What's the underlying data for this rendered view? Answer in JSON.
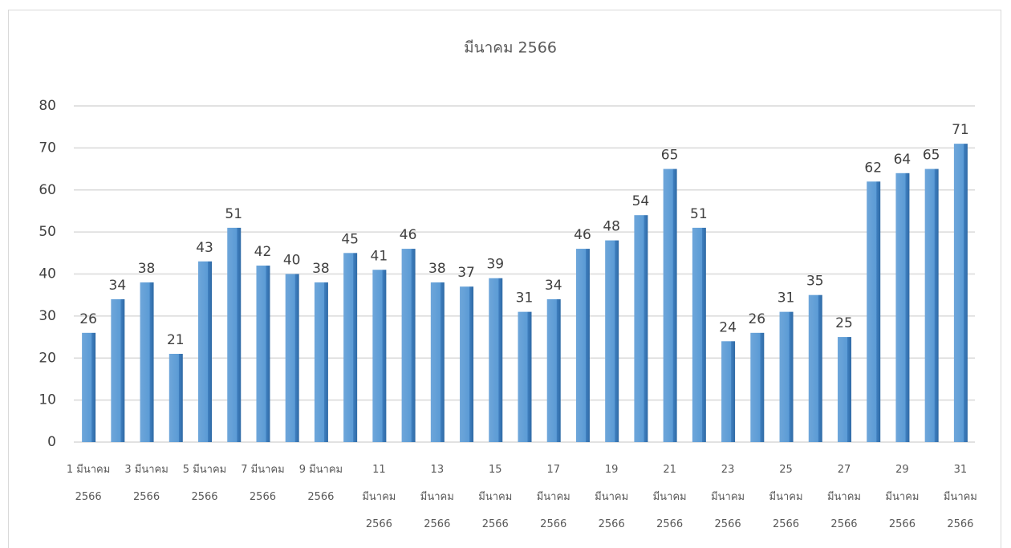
{
  "chart_data": {
    "type": "bar",
    "title": "มีนาคม 2566",
    "categories": [
      "1 มีนาคม 2566",
      null,
      "3 มีนาคม 2566",
      null,
      "5 มีนาคม 2566",
      null,
      "7 มีนาคม 2566",
      null,
      "9 มีนาคม 2566",
      null,
      "11 มีนาคม 2566",
      null,
      "13 มีนาคม 2566",
      null,
      "15 มีนาคม 2566",
      null,
      "17 มีนาคม 2566",
      null,
      "19 มีนาคม 2566",
      null,
      "21 มีนาคม 2566",
      null,
      "23 มีนาคม 2566",
      null,
      "25 มีนาคม 2566",
      null,
      "27 มีนาคม 2566",
      null,
      "29 มีนาคม 2566",
      null,
      "31 มีนาคม 2566"
    ],
    "values": [
      26,
      34,
      38,
      21,
      43,
      51,
      42,
      40,
      38,
      45,
      41,
      46,
      38,
      37,
      39,
      31,
      34,
      46,
      48,
      54,
      65,
      51,
      24,
      26,
      31,
      35,
      25,
      62,
      64,
      65,
      71
    ],
    "color": "#5b9bd5",
    "ylim": [
      0,
      80
    ],
    "yticks": [
      0,
      10,
      20,
      30,
      40,
      50,
      60,
      70,
      80
    ],
    "grid": true
  }
}
